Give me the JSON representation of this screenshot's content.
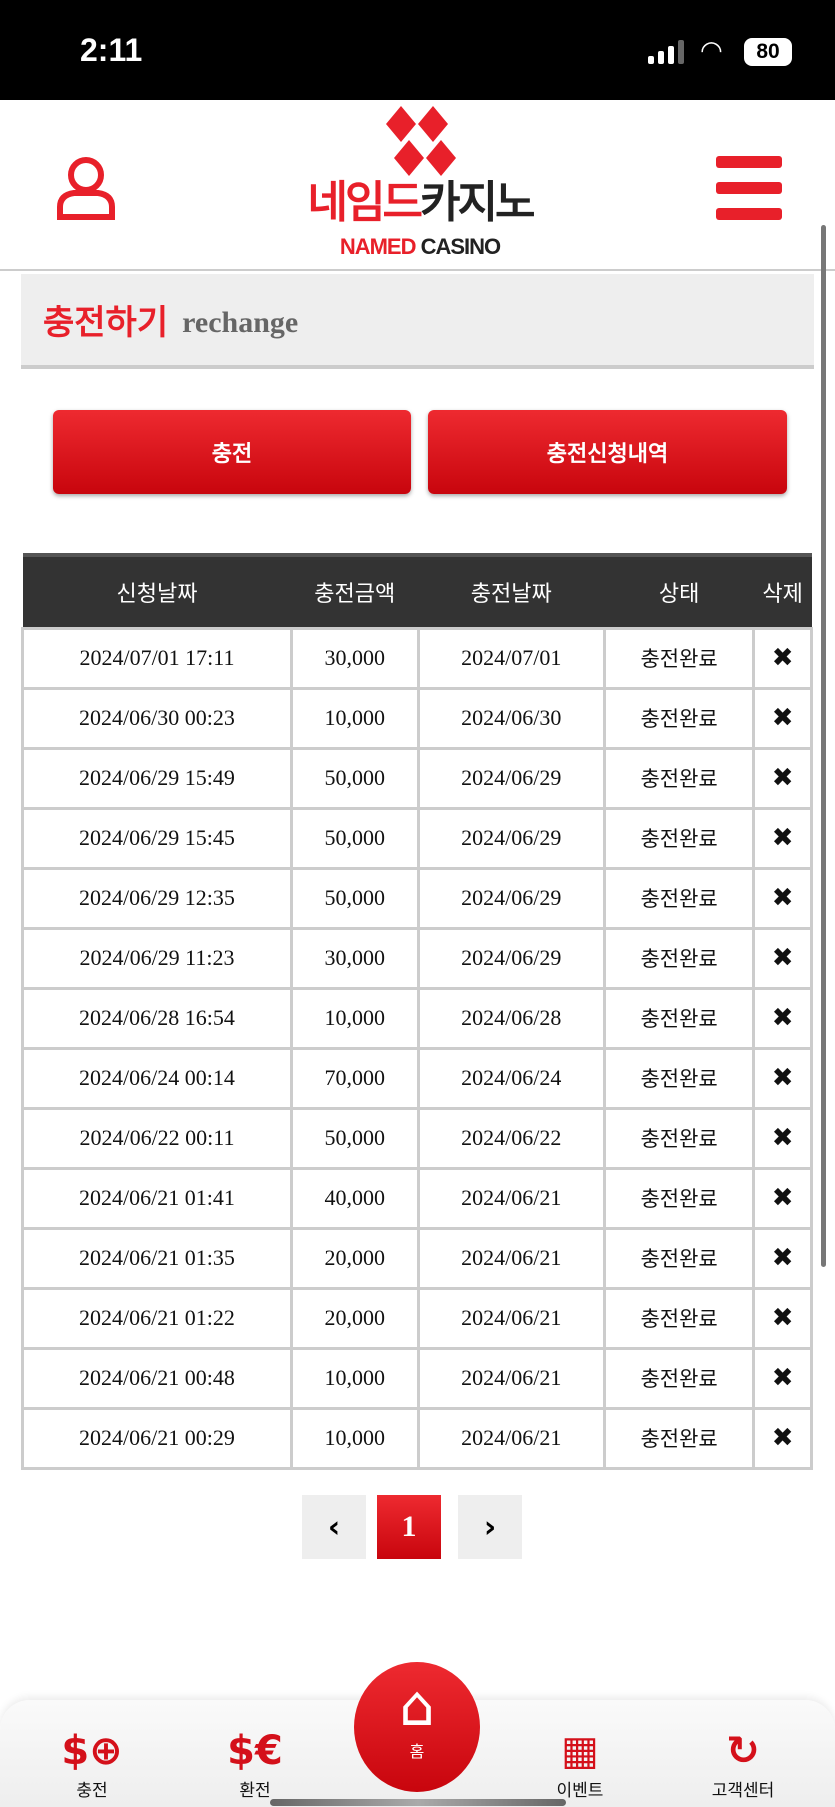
{
  "status_bar": {
    "time": "2:11",
    "battery": "80"
  },
  "header": {
    "logo_kr_red": "네임드",
    "logo_kr_dark": "카지노",
    "logo_en_red": "NAMED",
    "logo_en_dark": "CASINO"
  },
  "page_title": {
    "korean": "충전하기",
    "english": "rechange"
  },
  "buttons": {
    "charge": "충전",
    "history": "충전신청내역"
  },
  "table": {
    "headers": [
      "신청날짜",
      "충전금액",
      "충전날짜",
      "상태",
      "삭제"
    ],
    "rows": [
      [
        "2024/07/01 17:11",
        "30,000",
        "2024/07/01",
        "충전완료"
      ],
      [
        "2024/06/30 00:23",
        "10,000",
        "2024/06/30",
        "충전완료"
      ],
      [
        "2024/06/29 15:49",
        "50,000",
        "2024/06/29",
        "충전완료"
      ],
      [
        "2024/06/29 15:45",
        "50,000",
        "2024/06/29",
        "충전완료"
      ],
      [
        "2024/06/29 12:35",
        "50,000",
        "2024/06/29",
        "충전완료"
      ],
      [
        "2024/06/29 11:23",
        "30,000",
        "2024/06/29",
        "충전완료"
      ],
      [
        "2024/06/28 16:54",
        "10,000",
        "2024/06/28",
        "충전완료"
      ],
      [
        "2024/06/24 00:14",
        "70,000",
        "2024/06/24",
        "충전완료"
      ],
      [
        "2024/06/22 00:11",
        "50,000",
        "2024/06/22",
        "충전완료"
      ],
      [
        "2024/06/21 01:41",
        "40,000",
        "2024/06/21",
        "충전완료"
      ],
      [
        "2024/06/21 01:35",
        "20,000",
        "2024/06/21",
        "충전완료"
      ],
      [
        "2024/06/21 01:22",
        "20,000",
        "2024/06/21",
        "충전완료"
      ],
      [
        "2024/06/21 00:48",
        "10,000",
        "2024/06/21",
        "충전완료"
      ],
      [
        "2024/06/21 00:29",
        "10,000",
        "2024/06/21",
        "충전완료"
      ]
    ],
    "delete_icon": "✖"
  },
  "pagination": {
    "prev": "‹",
    "current": "1",
    "next": "›"
  },
  "bottom_nav": [
    {
      "label": "충전",
      "icon": "dollar-plus-icon"
    },
    {
      "label": "환전",
      "icon": "currency-exchange-icon"
    },
    {
      "label": "홈",
      "icon": "home-icon"
    },
    {
      "label": "이벤트",
      "icon": "calendar-check-icon"
    },
    {
      "label": "고객센터",
      "icon": "support-24-icon"
    }
  ],
  "colors": {
    "accent": "#e8202a",
    "header_bg": "#333333"
  }
}
